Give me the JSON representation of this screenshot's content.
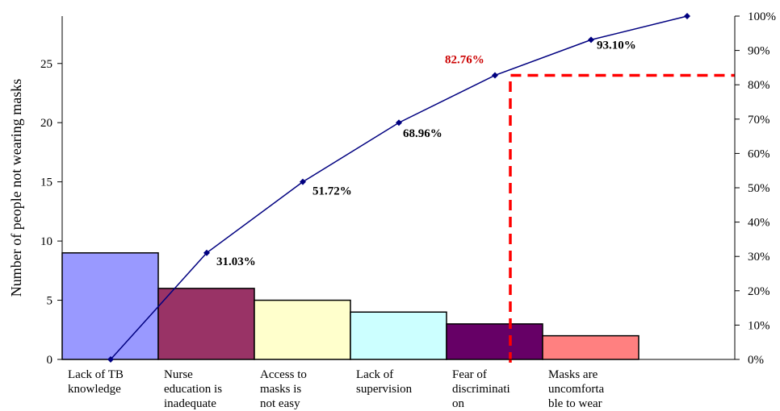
{
  "chart_data": {
    "type": "bar",
    "title": "",
    "ylabel": "Number of people not wearing masks",
    "xlabel": "",
    "ylim": [
      0,
      29
    ],
    "y2lim": [
      0,
      100
    ],
    "y_ticks": [
      0,
      5,
      10,
      15,
      20,
      25
    ],
    "y2_ticks": [
      "0%",
      "10%",
      "20%",
      "30%",
      "40%",
      "50%",
      "60%",
      "70%",
      "80%",
      "90%",
      "100%"
    ],
    "categories": [
      [
        "Lack of TB",
        "knowledge"
      ],
      [
        "Nurse",
        "education is",
        "inadequate"
      ],
      [
        "Access to",
        "masks is",
        "not easy"
      ],
      [
        "Lack of",
        "supervision"
      ],
      [
        "Fear of",
        "discriminati",
        "on"
      ],
      [
        "Masks are",
        "uncomforta",
        "ble to wear"
      ]
    ],
    "values": [
      9,
      6,
      5,
      4,
      3,
      2
    ],
    "bar_colors": [
      "#9999ff",
      "#993366",
      "#ffffcc",
      "#ccffff",
      "#660066",
      "#ff8080"
    ],
    "cumulative": {
      "values": [
        0,
        31.03,
        51.72,
        68.96,
        82.76,
        93.1,
        100
      ],
      "labels": [
        "",
        "31.03%",
        "51.72%",
        "68.96%",
        "82.76%",
        "93.10%",
        ""
      ],
      "highlight_index": 4,
      "line_color": "#000080",
      "highlight_color": "#cc0000"
    },
    "threshold": {
      "value": 82.76,
      "color": "#ff0000",
      "style": "dashed"
    },
    "grid": false,
    "legend": "none"
  }
}
